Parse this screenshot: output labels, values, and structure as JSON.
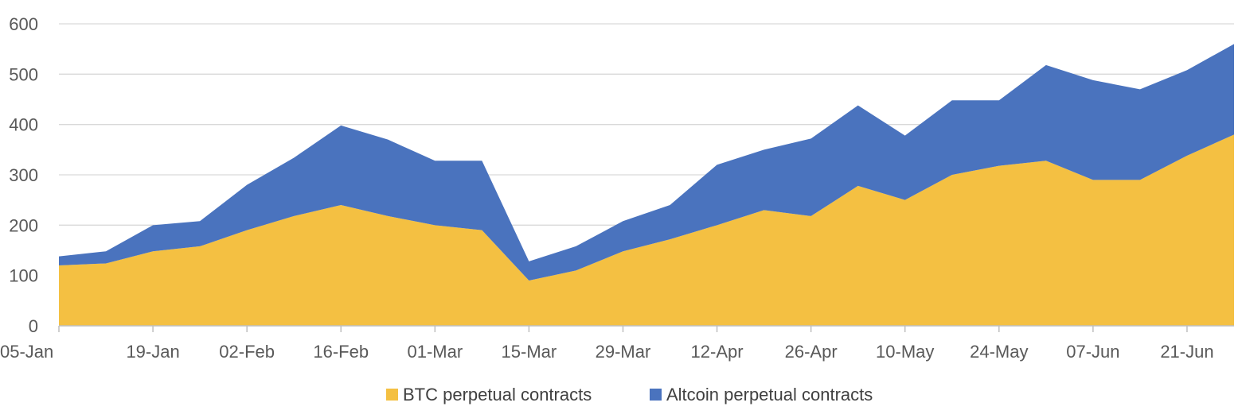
{
  "chart_data": {
    "type": "area",
    "stacked": true,
    "title": "",
    "xlabel": "",
    "ylabel": "",
    "ylim": [
      0,
      600
    ],
    "yticks": [
      0,
      100,
      200,
      300,
      400,
      500,
      600
    ],
    "grid": true,
    "legend_position": "bottom",
    "x": [
      "05-Jan",
      "12-Jan",
      "19-Jan",
      "26-Jan",
      "02-Feb",
      "09-Feb",
      "16-Feb",
      "23-Feb",
      "01-Mar",
      "08-Mar",
      "15-Mar",
      "22-Mar",
      "29-Mar",
      "05-Apr",
      "12-Apr",
      "19-Apr",
      "26-Apr",
      "03-May",
      "10-May",
      "17-May",
      "24-May",
      "31-May",
      "07-Jun",
      "14-Jun",
      "21-Jun",
      "28-Jun"
    ],
    "xtick_labels": [
      "05-Jan",
      "19-Jan",
      "02-Feb",
      "16-Feb",
      "01-Mar",
      "15-Mar",
      "29-Mar",
      "12-Apr",
      "26-Apr",
      "10-May",
      "24-May",
      "07-Jun",
      "21-Jun"
    ],
    "series": [
      {
        "name": "BTC perpetual contracts",
        "color": "#F4C042",
        "values": [
          120,
          124,
          148,
          158,
          190,
          218,
          240,
          218,
          200,
          190,
          90,
          110,
          148,
          172,
          200,
          230,
          218,
          278,
          250,
          300,
          318,
          328,
          290,
          290,
          338,
          380
        ]
      },
      {
        "name": "Altcoin perpetual contracts",
        "color": "#4A73BE",
        "values": [
          18,
          24,
          52,
          50,
          90,
          116,
          158,
          152,
          128,
          138,
          38,
          48,
          60,
          68,
          120,
          120,
          154,
          160,
          128,
          148,
          130,
          190,
          198,
          180,
          170,
          180
        ]
      }
    ]
  }
}
